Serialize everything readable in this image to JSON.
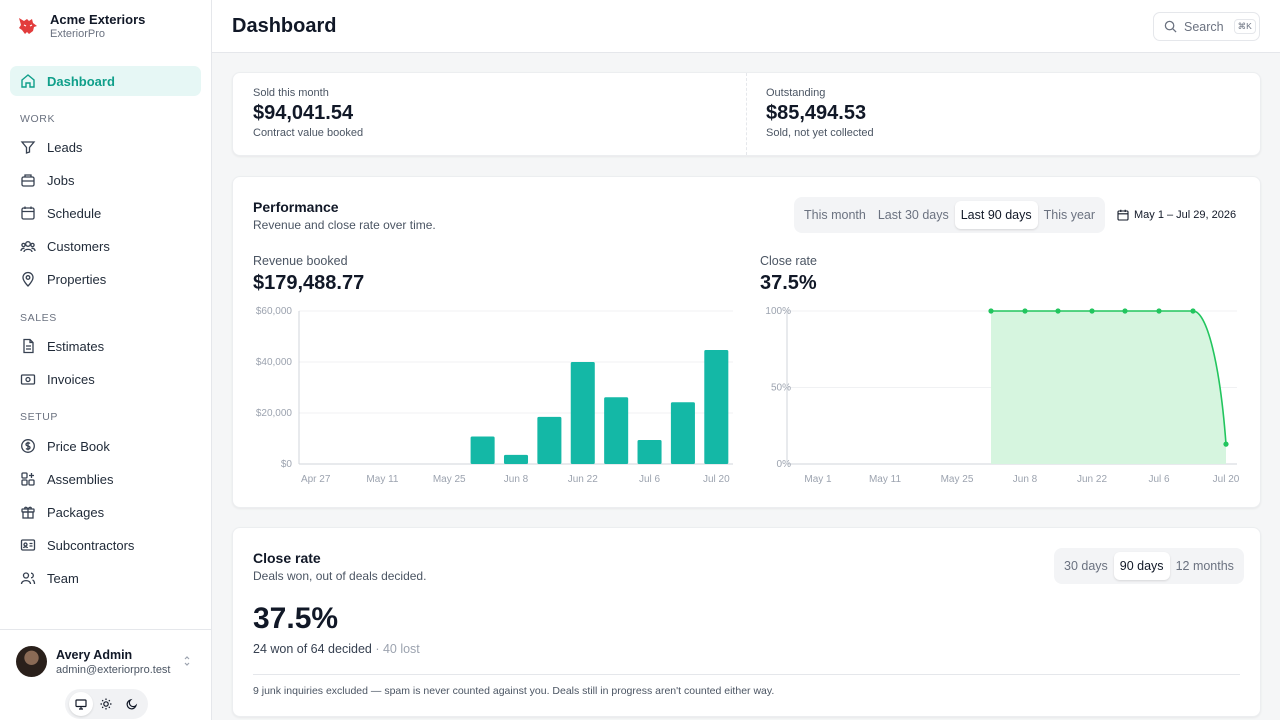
{
  "brand": {
    "name": "Acme Exteriors",
    "product": "ExteriorPro"
  },
  "nav": {
    "dashboard": "Dashboard",
    "sections": {
      "work": "WORK",
      "sales": "SALES",
      "setup": "SETUP"
    },
    "work": [
      "Leads",
      "Jobs",
      "Schedule",
      "Customers",
      "Properties"
    ],
    "sales": [
      "Estimates",
      "Invoices"
    ],
    "setup": [
      "Price Book",
      "Assemblies",
      "Packages",
      "Subcontractors",
      "Team"
    ]
  },
  "user": {
    "name": "Avery Admin",
    "email": "admin@exteriorpro.test"
  },
  "theme": {
    "selected": "system",
    "options": [
      "system",
      "light",
      "dark"
    ]
  },
  "header": {
    "title": "Dashboard",
    "search_label": "Search",
    "shortcut": "⌘K"
  },
  "stats": [
    {
      "label": "Sold this month",
      "value": "$94,041.54",
      "sub": "Contract value booked"
    },
    {
      "label": "Outstanding",
      "value": "$85,494.53",
      "sub": "Sold, not yet collected"
    }
  ],
  "performance": {
    "title": "Performance",
    "subtitle": "Revenue and close rate over time.",
    "ranges": [
      "This month",
      "Last 30 days",
      "Last 90 days",
      "This year"
    ],
    "selected_range": "Last 90 days",
    "date_range": "May 1 – Jul 29, 2026",
    "revenue_label": "Revenue booked",
    "revenue_value": "$179,488.77",
    "close_label": "Close rate",
    "close_value": "37.5%"
  },
  "close_rate_card": {
    "title": "Close rate",
    "subtitle": "Deals won, out of deals decided.",
    "ranges": [
      "30 days",
      "90 days",
      "12 months"
    ],
    "selected_range": "90 days",
    "value": "37.5%",
    "detail_main": "24 won of 64 decided",
    "detail_sep": " · ",
    "detail_lost": "40 lost",
    "footnote": "9 junk inquiries excluded — spam is never counted against you. Deals still in progress aren't counted either way."
  },
  "chart_data": [
    {
      "type": "bar",
      "title": "Revenue booked",
      "x_ticks": [
        "Apr 27",
        "May 11",
        "May 25",
        "Jun 8",
        "Jun 22",
        "Jul 6",
        "Jul 20"
      ],
      "y_ticks": [
        "$0",
        "$20,000",
        "$40,000",
        "$60,000"
      ],
      "ylim": [
        0,
        60000
      ],
      "grid": true,
      "categories": [
        "Apr 27",
        "May 4",
        "May 11",
        "May 18",
        "May 25",
        "Jun 1",
        "Jun 8",
        "Jun 15",
        "Jun 22",
        "Jun 29",
        "Jul 6",
        "Jul 13",
        "Jul 20"
      ],
      "values": [
        0,
        0,
        0,
        0,
        0,
        10800,
        3600,
        18500,
        40000,
        26200,
        9400,
        24200,
        44700
      ],
      "color": "#14b8a6"
    },
    {
      "type": "area",
      "title": "Close rate",
      "x_ticks": [
        "May 1",
        "May 11",
        "May 25",
        "Jun 8",
        "Jun 22",
        "Jul 6",
        "Jul 20"
      ],
      "y_ticks": [
        "0%",
        "50%",
        "100%"
      ],
      "ylim": [
        0,
        100
      ],
      "grid": true,
      "x": [
        "Jun 1",
        "Jun 8",
        "Jun 15",
        "Jun 22",
        "Jun 29",
        "Jul 6",
        "Jul 13",
        "Jul 20"
      ],
      "values": [
        100,
        100,
        100,
        100,
        100,
        100,
        100,
        13
      ],
      "color": "#22c55e"
    }
  ]
}
